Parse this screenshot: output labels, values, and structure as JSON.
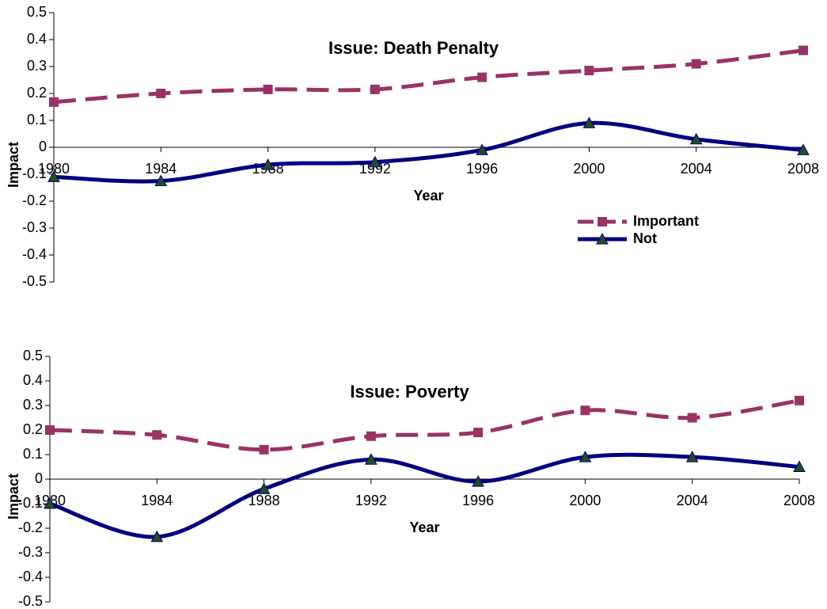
{
  "chart_data": [
    {
      "type": "line",
      "title": "Issue: Death Penalty",
      "x_label": "Year",
      "y_label": "Impact",
      "categories": [
        "1980",
        "1984",
        "1988",
        "1992",
        "1996",
        "2000",
        "2004",
        "2008"
      ],
      "series": [
        {
          "name": "Important",
          "color": "#993366",
          "marker_color": "#993366",
          "marker": "square",
          "dashed": true,
          "values": [
            0.168,
            0.2,
            0.215,
            0.215,
            0.26,
            0.285,
            0.31,
            0.36
          ]
        },
        {
          "name": "Not",
          "color": "#000080",
          "marker_color": "#1f4f1f",
          "marker": "triangle",
          "dashed": false,
          "values": [
            -0.11,
            -0.125,
            -0.065,
            -0.055,
            -0.01,
            0.09,
            0.03,
            -0.01
          ]
        }
      ],
      "ylim": [
        -0.5,
        0.5
      ],
      "yticks": [
        0.5,
        0.4,
        0.3,
        0.2,
        0.1,
        0,
        -0.1,
        -0.2,
        -0.3,
        -0.4,
        -0.5
      ],
      "smooth": true,
      "legend": "center-right"
    },
    {
      "type": "line",
      "title": "Issue: Poverty",
      "x_label": "Year",
      "y_label": "Impact",
      "categories": [
        "1980",
        "1984",
        "1988",
        "1992",
        "1996",
        "2000",
        "2004",
        "2008"
      ],
      "series": [
        {
          "name": "Important",
          "color": "#993366",
          "marker_color": "#993366",
          "marker": "square",
          "dashed": true,
          "values": [
            0.2,
            0.18,
            0.12,
            0.175,
            0.19,
            0.28,
            0.25,
            0.32
          ]
        },
        {
          "name": "Not",
          "color": "#000080",
          "marker_color": "#1f4f1f",
          "marker": "triangle",
          "dashed": false,
          "values": [
            -0.1,
            -0.235,
            -0.04,
            0.08,
            -0.01,
            0.09,
            0.09,
            0.05
          ]
        }
      ],
      "ylim": [
        -0.5,
        0.5
      ],
      "yticks": [
        0.5,
        0.4,
        0.3,
        0.2,
        0.1,
        0,
        -0.1,
        -0.2,
        -0.3,
        -0.4,
        -0.5
      ],
      "smooth": true
    }
  ]
}
